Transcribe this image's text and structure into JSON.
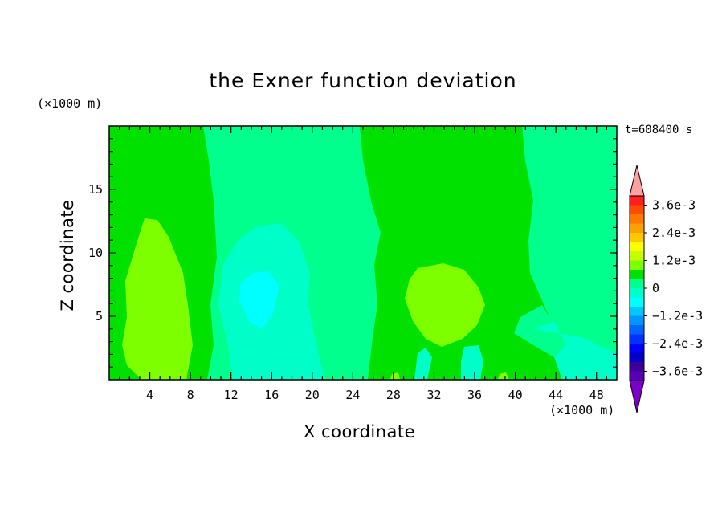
{
  "chart_data": {
    "type": "heatmap",
    "title": "the Exner function deviation",
    "xlabel": "X coordinate",
    "ylabel": "Z coordinate",
    "x_unit": "(×1000 m)",
    "y_unit": "(×1000 m)",
    "time_label": "t=608400 s",
    "xlim": [
      0,
      50
    ],
    "ylim": [
      0,
      20
    ],
    "x_ticks": [
      "4",
      "8",
      "12",
      "16",
      "20",
      "24",
      "28",
      "32",
      "36",
      "40",
      "44",
      "48"
    ],
    "y_ticks": [
      "5",
      "10",
      "15"
    ],
    "colorbar": {
      "labels": [
        "3.6e-3",
        "2.4e-3",
        "1.2e-3",
        "0",
        "−1.2e-3",
        "−2.4e-3",
        "−3.6e-3"
      ],
      "colors": [
        "#ffa0a0",
        "#ff1e1e",
        "#ff4a00",
        "#ff7800",
        "#ffa000",
        "#ffc800",
        "#ffff00",
        "#c8ff00",
        "#7dff00",
        "#00e100",
        "#00ff8c",
        "#00ffc8",
        "#00ffff",
        "#00c8ff",
        "#0096ff",
        "#0064ff",
        "#0032ff",
        "#0000ff",
        "#0000c8",
        "#3c0096",
        "#5a00b4",
        "#7d00c8"
      ]
    }
  }
}
